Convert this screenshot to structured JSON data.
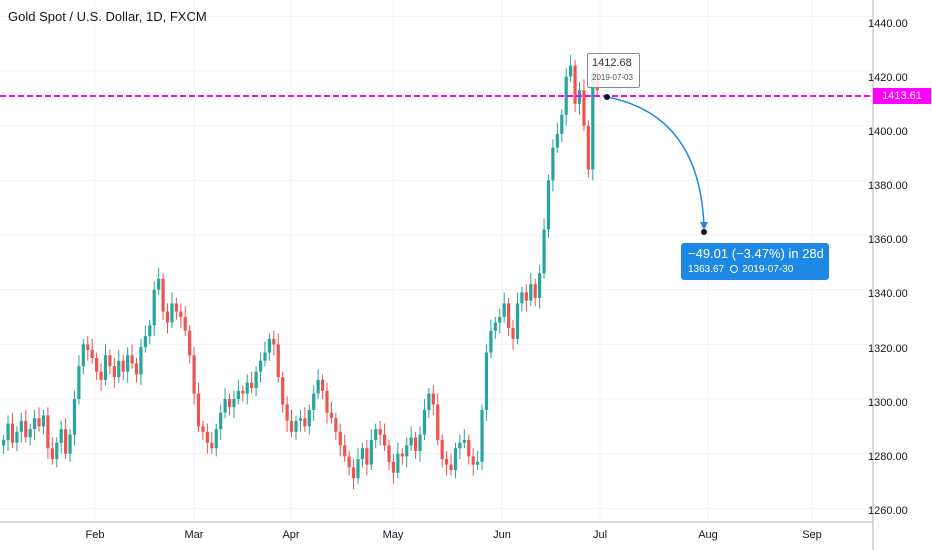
{
  "chart_data": {
    "type": "candlestick",
    "title": "Gold Spot / U.S. Dollar, 1D, FXCM",
    "ylim": [
      1255,
      1446
    ],
    "y_ticks": [
      "1440.00",
      "1420.00",
      "1400.00",
      "1380.00",
      "1360.00",
      "1340.00",
      "1320.00",
      "1300.00",
      "1280.00",
      "1260.00"
    ],
    "x_ticks": [
      "Feb",
      "Mar",
      "Apr",
      "May",
      "Jun",
      "Jul",
      "Aug",
      "Sep"
    ],
    "grid": true,
    "colors": {
      "up": "#26a69a",
      "down": "#ef5350",
      "level_line": "#ff00ff",
      "projection": "#1e88e5"
    },
    "closes": [
      1285,
      1291,
      1284,
      1288,
      1292,
      1286,
      1289,
      1293,
      1290,
      1294,
      1282,
      1278,
      1284,
      1289,
      1280,
      1287,
      1300,
      1312,
      1320,
      1318,
      1315,
      1310,
      1307,
      1316,
      1312,
      1308,
      1314,
      1310,
      1316,
      1313,
      1309,
      1319,
      1323,
      1327,
      1340,
      1344,
      1332,
      1328,
      1335,
      1332,
      1330,
      1325,
      1316,
      1302,
      1290,
      1288,
      1284,
      1282,
      1289,
      1295,
      1300,
      1297,
      1300,
      1303,
      1302,
      1306,
      1304,
      1310,
      1314,
      1317,
      1322,
      1320,
      1308,
      1298,
      1292,
      1288,
      1292,
      1293,
      1290,
      1296,
      1302,
      1307,
      1303,
      1295,
      1293,
      1288,
      1283,
      1279,
      1275,
      1271,
      1278,
      1282,
      1276,
      1285,
      1289,
      1287,
      1283,
      1277,
      1273,
      1280,
      1279,
      1283,
      1286,
      1281,
      1287,
      1296,
      1302,
      1298,
      1285,
      1278,
      1276,
      1274,
      1282,
      1284,
      1285,
      1279,
      1276,
      1277,
      1296,
      1317,
      1325,
      1328,
      1330,
      1335,
      1326,
      1322,
      1335,
      1339,
      1336,
      1342,
      1337,
      1346,
      1362,
      1380,
      1392,
      1397,
      1404,
      1418,
      1422,
      1408,
      1413,
      1400,
      1384,
      1419,
      1413
    ],
    "level_line": {
      "value": 1413.61,
      "label": "1413.61"
    },
    "tooltip": {
      "value": "1412.68",
      "date": "2019-07-03"
    },
    "projection": {
      "from_price": 1412.68,
      "to_price": 1363.67,
      "from_date": "2019-07-03",
      "to_date": "2019-07-30",
      "line1": "−49.01 (−3.47%) in 28d",
      "line2_price": "1363.67",
      "line2_date": "2019-07-30"
    }
  }
}
